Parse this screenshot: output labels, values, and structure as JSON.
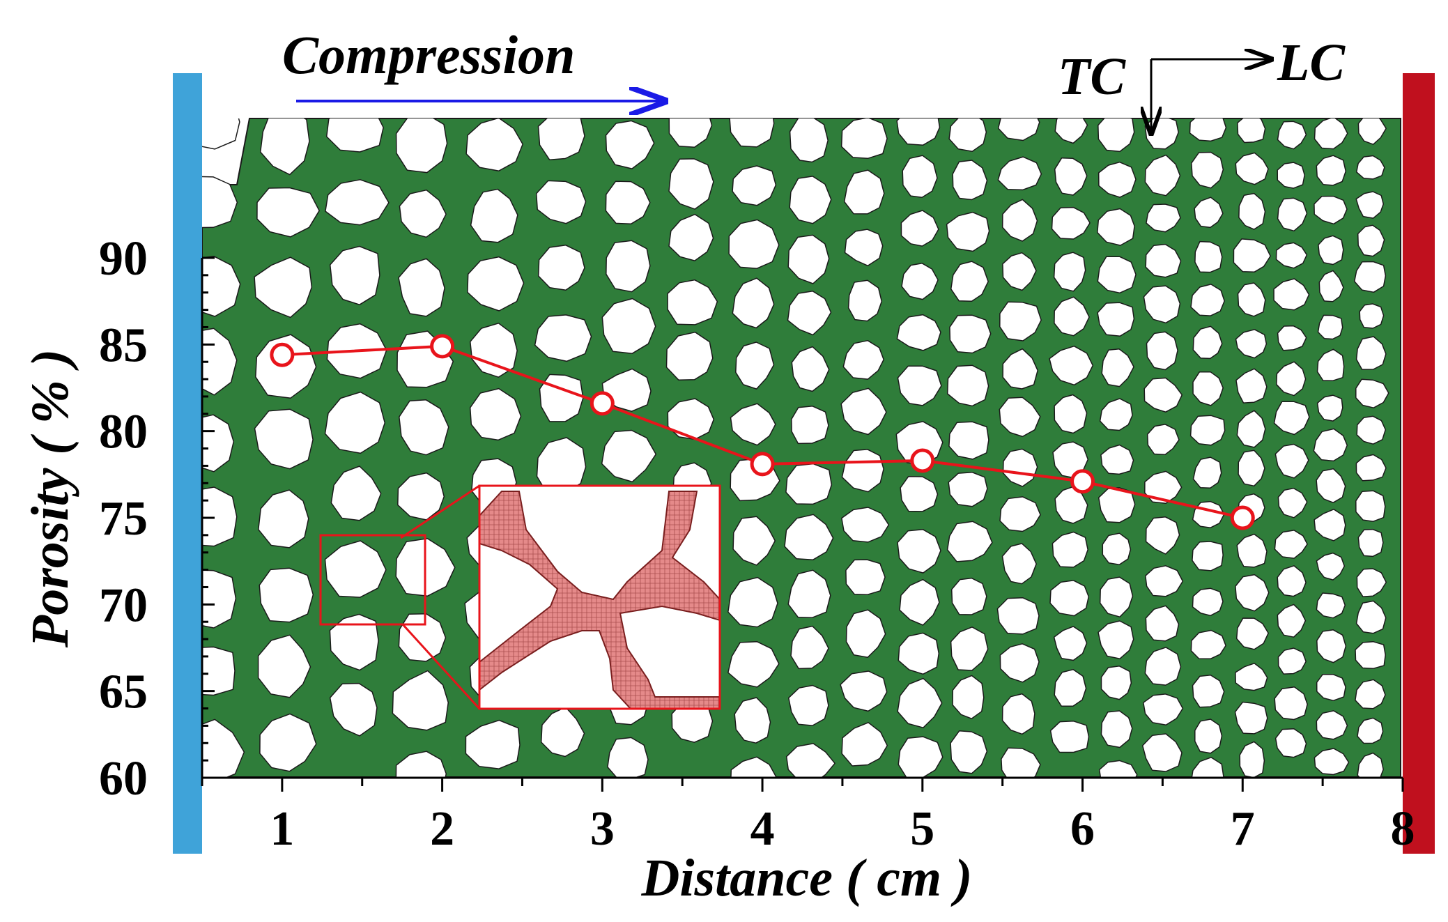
{
  "chart_data": {
    "type": "line",
    "title": "",
    "xlabel": "Distance ( cm )",
    "ylabel": "Porosity ( % )",
    "x": [
      1,
      2,
      3,
      4,
      5,
      6,
      7
    ],
    "series": [
      {
        "values": [
          84.4,
          84.9,
          81.6,
          78.1,
          78.3,
          77.1,
          75.0
        ],
        "color": "#e8141b",
        "marker": "open-circle"
      }
    ],
    "xlim": [
      0.5,
      8
    ],
    "ylim": [
      60,
      90
    ],
    "xticks": [
      "1",
      "2",
      "3",
      "4",
      "5",
      "6",
      "7",
      "8"
    ],
    "yticks": [
      "60",
      "65",
      "70",
      "75",
      "80",
      "85",
      "90"
    ],
    "grid": false,
    "background": "green foam cell structure image",
    "annotations": {
      "compression": "Compression",
      "tc": "TC",
      "lc": "LC"
    },
    "colors": {
      "foam": "#2f7d3a",
      "line": "#e8141b",
      "left_plate": "#3fa3d9",
      "right_plate": "#c0101e",
      "arrow": "#1a1ae6"
    }
  }
}
